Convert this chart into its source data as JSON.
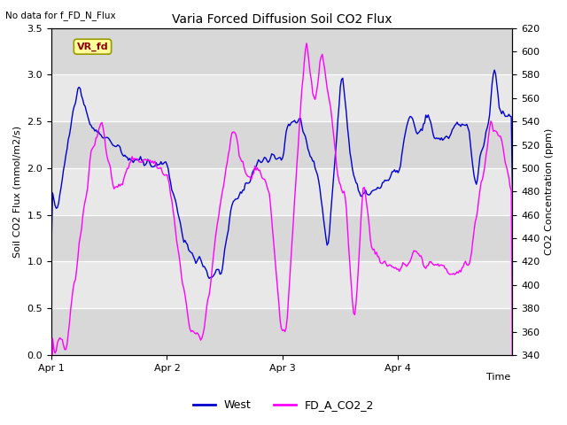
{
  "title": "Varia Forced Diffusion Soil CO2 Flux",
  "no_data_label": "No data for f_FD_N_Flux",
  "vr_fd_label": "VR_fd",
  "xlabel": "Time",
  "ylabel_left": "Soil CO2 Flux (mmol/m2/s)",
  "ylabel_right": "CO2 Concentration (ppm)",
  "ylim_left": [
    0.0,
    3.5
  ],
  "ylim_right": [
    340,
    620
  ],
  "yticks_left": [
    0.0,
    0.5,
    1.0,
    1.5,
    2.0,
    2.5,
    3.0,
    3.5
  ],
  "yticks_right": [
    340,
    360,
    380,
    400,
    420,
    440,
    460,
    480,
    500,
    520,
    540,
    560,
    580,
    600,
    620
  ],
  "xtick_labels": [
    "Apr 1",
    "Apr 2",
    "Apr 3",
    "Apr 4"
  ],
  "xtick_positions": [
    0,
    96,
    192,
    288
  ],
  "total_points": 384,
  "grid_color": "#d0d0d0",
  "background_color": "#e8e8e8",
  "west_color": "#0000cd",
  "co2_color": "#ff00ff",
  "legend_labels": [
    "West",
    "FD_A_CO2_2"
  ],
  "vr_fd_box_color": "#ffff99",
  "vr_fd_border_color": "#999900"
}
